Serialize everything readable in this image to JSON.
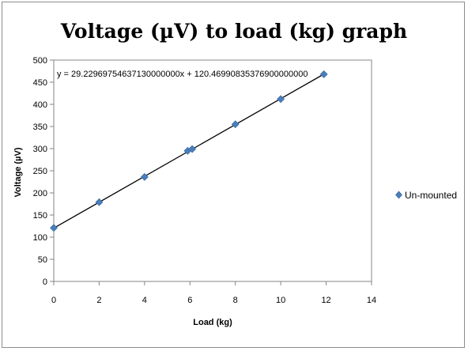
{
  "chart_data": {
    "type": "scatter",
    "title": "Voltage (µV) to load (kg) graph",
    "xlabel": "Load (kg)",
    "ylabel": "Voltage (µV)",
    "xlim": [
      0,
      14
    ],
    "ylim": [
      0,
      500
    ],
    "x_ticks": [
      0,
      2,
      4,
      6,
      8,
      10,
      12,
      14
    ],
    "y_ticks": [
      0,
      50,
      100,
      150,
      200,
      250,
      300,
      350,
      400,
      450,
      500
    ],
    "grid": {
      "horizontal": false,
      "vertical": false
    },
    "legend_position": "right",
    "series": [
      {
        "name": "Un-mounted",
        "color": "#4a7ebb",
        "marker": "diamond",
        "points": [
          {
            "x": 0,
            "y": 121
          },
          {
            "x": 2,
            "y": 179
          },
          {
            "x": 4,
            "y": 236
          },
          {
            "x": 5.9,
            "y": 295
          },
          {
            "x": 6.1,
            "y": 299
          },
          {
            "x": 8,
            "y": 355
          },
          {
            "x": 10,
            "y": 412
          },
          {
            "x": 11.9,
            "y": 468
          }
        ]
      }
    ],
    "trendline": {
      "type": "linear",
      "slope": 29.2296975463713,
      "intercept": 120.469908353769,
      "x_range": [
        0,
        11.9
      ],
      "color": "#000000",
      "equation_label": "y = 29.22969754637130000000x + 120.46990835376900000000"
    }
  }
}
